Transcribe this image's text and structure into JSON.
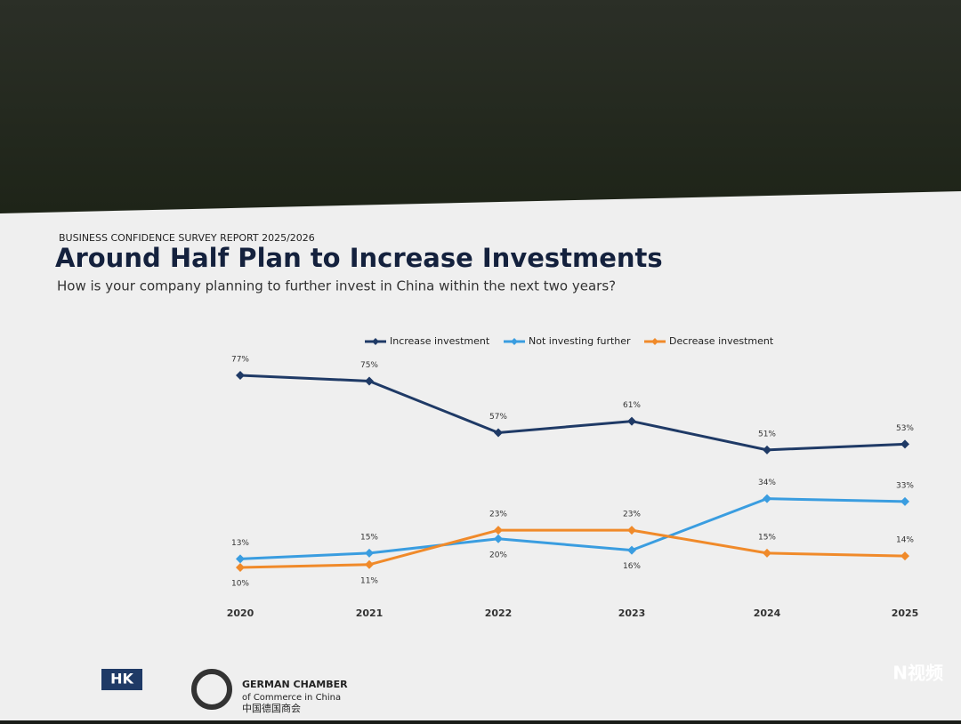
{
  "chart_data": {
    "type": "line",
    "supertitle": "BUSINESS CONFIDENCE SURVEY REPORT 2025/2026",
    "title": "Around Half Plan to Increase Investments",
    "subtitle": "How is your company planning to further invest in China within the next two years?",
    "categories": [
      "2020",
      "2021",
      "2022",
      "2023",
      "2024",
      "2025"
    ],
    "series": [
      {
        "name": "Increase investment",
        "color": "#1f3a66",
        "values": [
          77,
          75,
          57,
          61,
          51,
          53
        ],
        "value_labels": [
          "77%",
          "75%",
          "57%",
          "61%",
          "51%",
          "53%"
        ]
      },
      {
        "name": "Not investing further",
        "color": "#3a9de0",
        "values": [
          13,
          15,
          20,
          16,
          34,
          33
        ],
        "value_labels": [
          "13%",
          "15%",
          "20%",
          "16%",
          "34%",
          "33%"
        ]
      },
      {
        "name": "Decrease investment",
        "color": "#f08a2a",
        "values": [
          10,
          11,
          23,
          23,
          15,
          14
        ],
        "value_labels": [
          "10%",
          "11%",
          "23%",
          "23%",
          "15%",
          "14%"
        ]
      }
    ],
    "footer": {
      "badge": "HK",
      "org_line1": "GERMAN CHAMBER",
      "org_line2": "of Commerce in China",
      "org_line3": "中国德国商会",
      "watermark": "N视频"
    }
  }
}
